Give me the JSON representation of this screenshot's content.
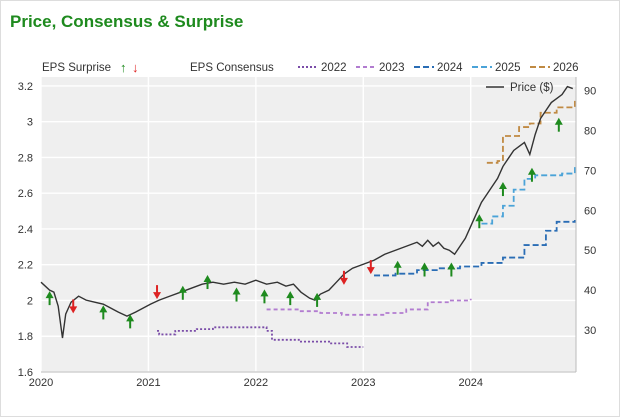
{
  "title": "Price, Consensus & Surprise",
  "legend": {
    "eps_surprise": "EPS Surprise",
    "eps_consensus": "EPS Consensus",
    "price_label": "Price ($)"
  },
  "colors": {
    "title": "#1e8a1e",
    "price": "#333333",
    "up": "#1e8a1e",
    "down": "#dd2222",
    "plot_bg": "#efefef",
    "grid": "#ffffff",
    "c2022": "#7a4ca8",
    "c2023": "#b27cd0",
    "c2024": "#2a6db5",
    "c2025": "#4aa3d8",
    "c2026": "#c08a43"
  },
  "chart_data": {
    "type": "line",
    "title": "Price, Consensus & Surprise",
    "x_ticks": [
      "2020",
      "2021",
      "2022",
      "2023",
      "2024"
    ],
    "xlim": [
      2020.0,
      2024.98
    ],
    "y_left": {
      "label": "",
      "ylim": [
        1.6,
        3.25
      ],
      "ticks": [
        "1.6",
        "1.8",
        "2",
        "2.2",
        "2.4",
        "2.6",
        "2.8",
        "3",
        "3.2"
      ]
    },
    "y_right": {
      "label": "Price ($)",
      "ylim": [
        19.5,
        93.4
      ],
      "ticks": [
        "30",
        "40",
        "50",
        "60",
        "70",
        "80",
        "90"
      ]
    },
    "legend_placement": "top",
    "price_series": {
      "name": "Price ($)",
      "axis": "right",
      "points": [
        [
          2020.0,
          42
        ],
        [
          2020.08,
          40
        ],
        [
          2020.12,
          39.5
        ],
        [
          2020.16,
          36
        ],
        [
          2020.2,
          28
        ],
        [
          2020.23,
          34
        ],
        [
          2020.28,
          37
        ],
        [
          2020.35,
          38.5
        ],
        [
          2020.42,
          37.5
        ],
        [
          2020.5,
          37
        ],
        [
          2020.58,
          36.5
        ],
        [
          2020.65,
          35.5
        ],
        [
          2020.72,
          34.5
        ],
        [
          2020.8,
          33.5
        ],
        [
          2020.88,
          34.5
        ],
        [
          2020.95,
          35.5
        ],
        [
          2021.02,
          36.5
        ],
        [
          2021.1,
          37.5
        ],
        [
          2021.2,
          38.5
        ],
        [
          2021.3,
          39.5
        ],
        [
          2021.4,
          40.5
        ],
        [
          2021.5,
          41.5
        ],
        [
          2021.6,
          42
        ],
        [
          2021.7,
          41.5
        ],
        [
          2021.8,
          42
        ],
        [
          2021.9,
          41.5
        ],
        [
          2022.0,
          42.5
        ],
        [
          2022.1,
          41.5
        ],
        [
          2022.2,
          42
        ],
        [
          2022.28,
          41
        ],
        [
          2022.35,
          41.5
        ],
        [
          2022.42,
          39.5
        ],
        [
          2022.5,
          38
        ],
        [
          2022.55,
          37.5
        ],
        [
          2022.6,
          39
        ],
        [
          2022.68,
          40
        ],
        [
          2022.75,
          42
        ],
        [
          2022.82,
          44
        ],
        [
          2022.9,
          45.5
        ],
        [
          2023.0,
          46.5
        ],
        [
          2023.1,
          47.5
        ],
        [
          2023.2,
          49
        ],
        [
          2023.3,
          50
        ],
        [
          2023.4,
          51
        ],
        [
          2023.5,
          52
        ],
        [
          2023.55,
          51
        ],
        [
          2023.6,
          52.5
        ],
        [
          2023.65,
          51
        ],
        [
          2023.7,
          52
        ],
        [
          2023.75,
          50.5
        ],
        [
          2023.8,
          50
        ],
        [
          2023.85,
          49
        ],
        [
          2023.9,
          51
        ],
        [
          2023.95,
          53
        ],
        [
          2024.0,
          56
        ],
        [
          2024.05,
          59
        ],
        [
          2024.1,
          62
        ],
        [
          2024.15,
          64
        ],
        [
          2024.2,
          66
        ],
        [
          2024.25,
          68
        ],
        [
          2024.3,
          71
        ],
        [
          2024.35,
          73
        ],
        [
          2024.4,
          75
        ],
        [
          2024.45,
          76
        ],
        [
          2024.5,
          77
        ],
        [
          2024.55,
          74
        ],
        [
          2024.6,
          79
        ],
        [
          2024.65,
          83
        ],
        [
          2024.7,
          85
        ],
        [
          2024.75,
          87
        ],
        [
          2024.8,
          88
        ],
        [
          2024.85,
          89
        ],
        [
          2024.9,
          91
        ],
        [
          2024.95,
          90.5
        ]
      ]
    },
    "consensus_series": [
      {
        "name": "2022",
        "color": "#7a4ca8",
        "dash": "2,2",
        "points": [
          [
            2021.08,
            1.83
          ],
          [
            2021.1,
            1.81
          ],
          [
            2021.25,
            1.83
          ],
          [
            2021.45,
            1.84
          ],
          [
            2021.6,
            1.85
          ],
          [
            2021.8,
            1.85
          ],
          [
            2022.05,
            1.85
          ],
          [
            2022.1,
            1.83
          ],
          [
            2022.15,
            1.78
          ],
          [
            2022.4,
            1.77
          ],
          [
            2022.7,
            1.76
          ],
          [
            2022.85,
            1.74
          ],
          [
            2023.0,
            1.74
          ]
        ]
      },
      {
        "name": "2023",
        "color": "#b27cd0",
        "dash": "4,3",
        "points": [
          [
            2022.1,
            1.95
          ],
          [
            2022.4,
            1.94
          ],
          [
            2022.6,
            1.93
          ],
          [
            2022.8,
            1.92
          ],
          [
            2023.0,
            1.92
          ],
          [
            2023.2,
            1.93
          ],
          [
            2023.4,
            1.95
          ],
          [
            2023.6,
            1.99
          ],
          [
            2023.8,
            2.0
          ],
          [
            2024.0,
            2.01
          ]
        ]
      },
      {
        "name": "2024",
        "color": "#2a6db5",
        "dash": "6,3",
        "points": [
          [
            2023.1,
            2.14
          ],
          [
            2023.3,
            2.15
          ],
          [
            2023.5,
            2.17
          ],
          [
            2023.7,
            2.18
          ],
          [
            2023.9,
            2.19
          ],
          [
            2024.1,
            2.21
          ],
          [
            2024.3,
            2.24
          ],
          [
            2024.5,
            2.31
          ],
          [
            2024.7,
            2.39
          ],
          [
            2024.8,
            2.44
          ],
          [
            2024.97,
            2.45
          ]
        ]
      },
      {
        "name": "2025",
        "color": "#4aa3d8",
        "dash": "6,3",
        "points": [
          [
            2024.1,
            2.43
          ],
          [
            2024.2,
            2.47
          ],
          [
            2024.3,
            2.53
          ],
          [
            2024.4,
            2.62
          ],
          [
            2024.5,
            2.68
          ],
          [
            2024.6,
            2.7
          ],
          [
            2024.85,
            2.71
          ],
          [
            2024.97,
            2.76
          ]
        ]
      },
      {
        "name": "2026",
        "color": "#c08a43",
        "dash": "6,3",
        "points": [
          [
            2024.15,
            2.77
          ],
          [
            2024.25,
            2.78
          ],
          [
            2024.3,
            2.92
          ],
          [
            2024.45,
            2.97
          ],
          [
            2024.55,
            2.99
          ],
          [
            2024.65,
            3.05
          ],
          [
            2024.8,
            3.08
          ],
          [
            2024.97,
            3.12
          ]
        ]
      }
    ],
    "surprise_markers": [
      {
        "x": 2020.08,
        "y": 2.03,
        "dir": "up"
      },
      {
        "x": 2020.3,
        "y": 1.95,
        "dir": "down"
      },
      {
        "x": 2020.58,
        "y": 1.95,
        "dir": "up"
      },
      {
        "x": 2020.83,
        "y": 1.9,
        "dir": "up"
      },
      {
        "x": 2021.08,
        "y": 2.03,
        "dir": "down"
      },
      {
        "x": 2021.32,
        "y": 2.06,
        "dir": "up"
      },
      {
        "x": 2021.55,
        "y": 2.12,
        "dir": "up"
      },
      {
        "x": 2021.82,
        "y": 2.05,
        "dir": "up"
      },
      {
        "x": 2022.08,
        "y": 2.04,
        "dir": "up"
      },
      {
        "x": 2022.32,
        "y": 2.03,
        "dir": "up"
      },
      {
        "x": 2022.57,
        "y": 2.02,
        "dir": "up"
      },
      {
        "x": 2022.82,
        "y": 2.11,
        "dir": "down"
      },
      {
        "x": 2023.07,
        "y": 2.17,
        "dir": "down"
      },
      {
        "x": 2023.32,
        "y": 2.2,
        "dir": "up"
      },
      {
        "x": 2023.57,
        "y": 2.19,
        "dir": "up"
      },
      {
        "x": 2023.82,
        "y": 2.19,
        "dir": "up"
      },
      {
        "x": 2024.08,
        "y": 2.46,
        "dir": "up"
      },
      {
        "x": 2024.3,
        "y": 2.64,
        "dir": "up"
      },
      {
        "x": 2024.57,
        "y": 2.72,
        "dir": "up"
      },
      {
        "x": 2024.82,
        "y": 3.0,
        "dir": "up"
      }
    ]
  }
}
